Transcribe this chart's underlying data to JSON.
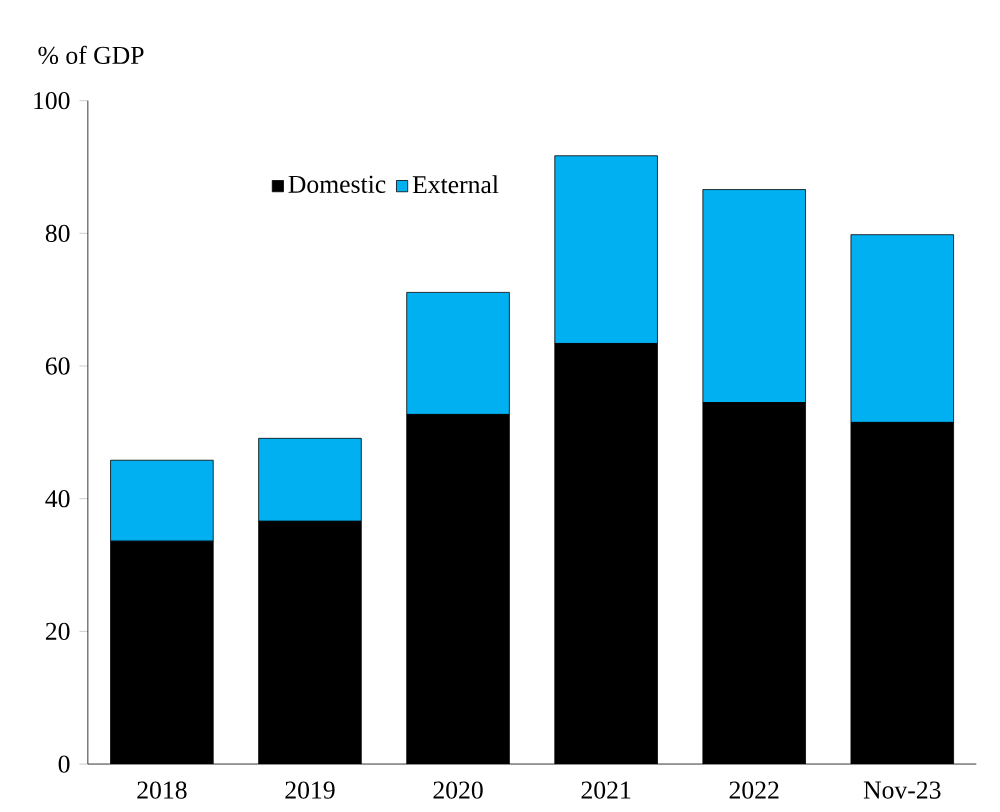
{
  "chart_data": {
    "type": "bar",
    "stacked": true,
    "ylabel": "% of GDP",
    "categories": [
      "2018",
      "2019",
      "2020",
      "2021",
      "2022",
      "Nov-23"
    ],
    "series": [
      {
        "name": "Domestic",
        "color": "#000000",
        "values": [
          33.6,
          36.6,
          52.7,
          63.4,
          54.5,
          51.5
        ]
      },
      {
        "name": "External",
        "color": "#00b0f0",
        "values": [
          12.2,
          12.5,
          18.4,
          28.3,
          32.1,
          28.3
        ]
      }
    ],
    "ylim": [
      0,
      100
    ],
    "yticks": [
      0,
      20,
      40,
      60,
      80,
      100
    ],
    "legend": "top left",
    "grid": false
  }
}
